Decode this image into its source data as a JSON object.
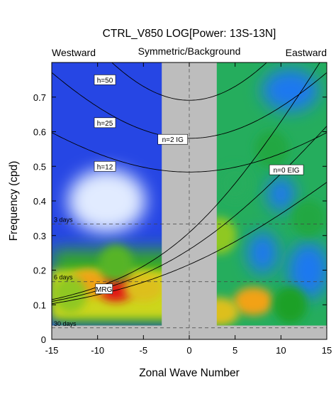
{
  "chart_data": {
    "type": "heatmap",
    "title": "CTRL_V850 LOG[Power: 13S-13N]",
    "subtitle": "Symmetric/Background",
    "left_label": "Westward",
    "right_label": "Eastward",
    "xlabel": "Zonal Wave Number",
    "ylabel": "Frequency (cpd)",
    "xlim": [
      -15,
      15
    ],
    "ylim": [
      0,
      0.8
    ],
    "x_ticks": [
      -15,
      -10,
      -5,
      0,
      5,
      10,
      15
    ],
    "y_ticks": [
      0,
      0.1,
      0.2,
      0.3,
      0.4,
      0.5,
      0.6,
      0.7
    ],
    "masked_x_range": [
      -3,
      3
    ],
    "masked_freq_below": 0.04,
    "period_lines": [
      {
        "label": "3 days",
        "freq": 0.3333
      },
      {
        "label": "6 days",
        "freq": 0.1667
      },
      {
        "label": "30 days",
        "freq": 0.0333
      }
    ],
    "dispersion_labels": [
      "h=50",
      "h=25",
      "h=12",
      "n=2 IG",
      "n=0 EIG",
      "MRG"
    ],
    "equivalent_depths_m": [
      12,
      25,
      50
    ],
    "power_blobs": [
      {
        "x": -8,
        "freq": 0.15,
        "level": 1.0
      },
      {
        "x": -11,
        "freq": 0.16,
        "level": 0.85
      },
      {
        "x": -5,
        "freq": 0.15,
        "level": 0.8
      },
      {
        "x": -13,
        "freq": 0.13,
        "level": 0.7
      },
      {
        "x": -8,
        "freq": 0.22,
        "level": 0.65
      },
      {
        "x": 7,
        "freq": 0.11,
        "level": 0.85
      },
      {
        "x": 3.3,
        "freq": 0.08,
        "level": 0.8
      },
      {
        "x": 3.3,
        "freq": 0.3,
        "level": 0.7
      },
      {
        "x": 11,
        "freq": 0.1,
        "level": 0.6
      },
      {
        "x": 9,
        "freq": 0.55,
        "level": 0.55
      },
      {
        "x": 13,
        "freq": 0.35,
        "level": 0.55
      },
      {
        "x": 5,
        "freq": 0.45,
        "level": 0.5
      }
    ],
    "low_power_region": {
      "x": -9,
      "freq": 0.4,
      "level": 0.0
    }
  }
}
